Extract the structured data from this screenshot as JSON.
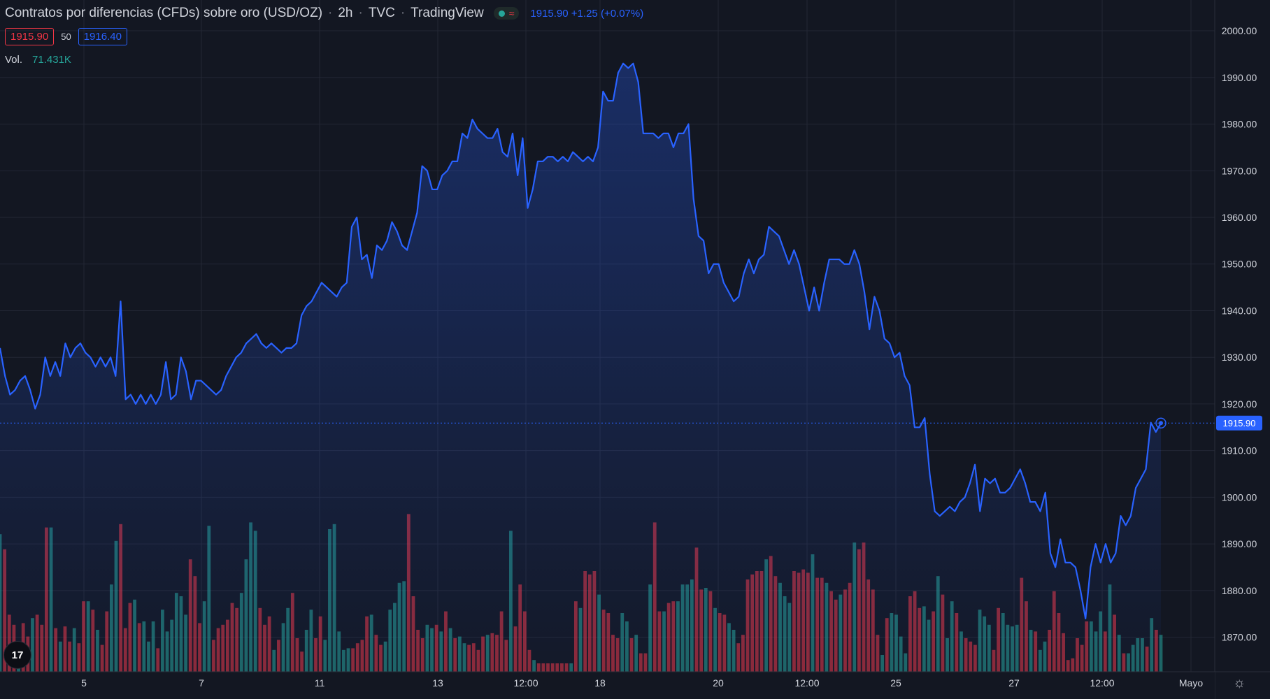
{
  "header": {
    "title": "Contratos por diferencias (CFDs) sobre oro (USD/OZ)",
    "interval": "2h",
    "exchange": "TVC",
    "source": "TradingView",
    "last_price": "1915.90",
    "change": "+1.25",
    "change_pct": "(+0.07%)"
  },
  "quote": {
    "bid": "1915.90",
    "spread": "50",
    "ask": "1916.40"
  },
  "volume": {
    "label": "Vol.",
    "value": "71.431K"
  },
  "price_label": "1915.90",
  "logo_text": "17",
  "colors": {
    "background": "#131722",
    "grid": "#232734",
    "line": "#2962ff",
    "up": "#26a69a",
    "down": "#f23645",
    "text": "#d1d4dc"
  },
  "chart_data": {
    "type": "area",
    "title": "Contratos por diferencias (CFDs) sobre oro (USD/OZ)",
    "ylim": [
      1862.6,
      2006.6
    ],
    "y_ticks": [
      "2000.00",
      "1990.00",
      "1980.00",
      "1970.00",
      "1960.00",
      "1950.00",
      "1940.00",
      "1930.00",
      "1920.00",
      "1910.00",
      "1900.00",
      "1890.00",
      "1880.00",
      "1870.00"
    ],
    "x_ticks": [
      "5",
      "7",
      "11",
      "13",
      "12:00",
      "18",
      "20",
      "12:00",
      "25",
      "27",
      "12:00",
      "Mayo"
    ],
    "current_price": 1915.9,
    "grid": true,
    "price_series": [
      1932,
      1926,
      1922,
      1923,
      1925,
      1926,
      1923,
      1919,
      1922,
      1930,
      1926,
      1929,
      1926,
      1933,
      1930,
      1932,
      1933,
      1931,
      1930,
      1928,
      1930,
      1928,
      1930,
      1926,
      1942,
      1921,
      1922,
      1920,
      1922,
      1920,
      1922,
      1920,
      1922,
      1929,
      1921,
      1922,
      1930,
      1927,
      1921,
      1925,
      1925,
      1924,
      1923,
      1922,
      1923,
      1926,
      1928,
      1930,
      1931,
      1933,
      1934,
      1935,
      1933,
      1932,
      1933,
      1932,
      1931,
      1932,
      1932,
      1933,
      1939,
      1941,
      1942,
      1944,
      1946,
      1945,
      1944,
      1943,
      1945,
      1946,
      1958,
      1960,
      1951,
      1952,
      1947,
      1954,
      1953,
      1955,
      1959,
      1957,
      1954,
      1953,
      1957,
      1961,
      1971,
      1970,
      1966,
      1966,
      1969,
      1970,
      1972,
      1972,
      1978,
      1977,
      1981,
      1979,
      1978,
      1977,
      1977,
      1979,
      1974,
      1973,
      1978,
      1969,
      1977,
      1962,
      1966,
      1972,
      1972,
      1973,
      1973,
      1972,
      1973,
      1972,
      1974,
      1973,
      1972,
      1973,
      1972,
      1975,
      1987,
      1985,
      1985,
      1991,
      1993,
      1992,
      1993,
      1989,
      1978,
      1978,
      1978,
      1977,
      1978,
      1978,
      1975,
      1978,
      1978,
      1980,
      1964,
      1956,
      1955,
      1948,
      1950,
      1950,
      1946,
      1944,
      1942,
      1943,
      1948,
      1951,
      1948,
      1951,
      1952,
      1958,
      1957,
      1956,
      1953,
      1950,
      1953,
      1950,
      1945,
      1940,
      1945,
      1940,
      1946,
      1951,
      1951,
      1951,
      1950,
      1950,
      1953,
      1950,
      1944,
      1936,
      1943,
      1940,
      1934,
      1933,
      1930,
      1931,
      1926,
      1924,
      1915,
      1915,
      1917,
      1905,
      1897,
      1896,
      1897,
      1898,
      1897,
      1899,
      1900,
      1903,
      1907,
      1897,
      1904,
      1903,
      1904,
      1901,
      1901,
      1902,
      1904,
      1906,
      1903,
      1899,
      1899,
      1897,
      1901,
      1888,
      1885,
      1891,
      1886,
      1886,
      1885,
      1880,
      1874,
      1885,
      1890,
      1886,
      1890,
      1886,
      1888,
      1896,
      1894,
      1896,
      1902,
      1904,
      1906,
      1916,
      1914,
      1915.9
    ],
    "volume_series": [
      {
        "v": 82,
        "up": true
      },
      {
        "v": 73,
        "up": false
      },
      {
        "v": 34,
        "up": false
      },
      {
        "v": 28,
        "up": false
      },
      {
        "v": 16,
        "up": true
      },
      {
        "v": 29,
        "up": false
      },
      {
        "v": 21,
        "up": false
      },
      {
        "v": 32,
        "up": true
      },
      {
        "v": 34,
        "up": false
      },
      {
        "v": 28,
        "up": false
      },
      {
        "v": 86,
        "up": false
      },
      {
        "v": 86,
        "up": true
      },
      {
        "v": 26,
        "up": false
      },
      {
        "v": 18,
        "up": true
      },
      {
        "v": 27,
        "up": false
      },
      {
        "v": 18,
        "up": false
      },
      {
        "v": 26,
        "up": true
      },
      {
        "v": 17,
        "up": false
      },
      {
        "v": 42,
        "up": false
      },
      {
        "v": 42,
        "up": true
      },
      {
        "v": 37,
        "up": false
      },
      {
        "v": 25,
        "up": true
      },
      {
        "v": 16,
        "up": false
      },
      {
        "v": 36,
        "up": false
      },
      {
        "v": 52,
        "up": true
      },
      {
        "v": 78,
        "up": true
      },
      {
        "v": 88,
        "up": false
      },
      {
        "v": 26,
        "up": false
      },
      {
        "v": 41,
        "up": false
      },
      {
        "v": 43,
        "up": true
      },
      {
        "v": 29,
        "up": false
      },
      {
        "v": 30,
        "up": true
      },
      {
        "v": 18,
        "up": true
      },
      {
        "v": 30,
        "up": true
      },
      {
        "v": 14,
        "up": false
      },
      {
        "v": 37,
        "up": true
      },
      {
        "v": 24,
        "up": true
      },
      {
        "v": 31,
        "up": true
      },
      {
        "v": 47,
        "up": true
      },
      {
        "v": 45,
        "up": true
      },
      {
        "v": 34,
        "up": true
      },
      {
        "v": 67,
        "up": false
      },
      {
        "v": 57,
        "up": false
      },
      {
        "v": 29,
        "up": false
      },
      {
        "v": 42,
        "up": true
      },
      {
        "v": 87,
        "up": true
      },
      {
        "v": 19,
        "up": false
      },
      {
        "v": 26,
        "up": false
      },
      {
        "v": 28,
        "up": false
      },
      {
        "v": 31,
        "up": false
      },
      {
        "v": 41,
        "up": false
      },
      {
        "v": 38,
        "up": false
      },
      {
        "v": 47,
        "up": true
      },
      {
        "v": 67,
        "up": true
      },
      {
        "v": 89,
        "up": true
      },
      {
        "v": 84,
        "up": true
      },
      {
        "v": 38,
        "up": false
      },
      {
        "v": 28,
        "up": false
      },
      {
        "v": 33,
        "up": false
      },
      {
        "v": 13,
        "up": true
      },
      {
        "v": 19,
        "up": false
      },
      {
        "v": 29,
        "up": true
      },
      {
        "v": 38,
        "up": true
      },
      {
        "v": 47,
        "up": false
      },
      {
        "v": 20,
        "up": false
      },
      {
        "v": 12,
        "up": false
      },
      {
        "v": 25,
        "up": true
      },
      {
        "v": 37,
        "up": true
      },
      {
        "v": 20,
        "up": false
      },
      {
        "v": 33,
        "up": false
      },
      {
        "v": 19,
        "up": true
      },
      {
        "v": 85,
        "up": true
      },
      {
        "v": 88,
        "up": true
      },
      {
        "v": 24,
        "up": true
      },
      {
        "v": 13,
        "up": true
      },
      {
        "v": 14,
        "up": true
      },
      {
        "v": 14,
        "up": false
      },
      {
        "v": 17,
        "up": false
      },
      {
        "v": 19,
        "up": false
      },
      {
        "v": 33,
        "up": false
      },
      {
        "v": 34,
        "up": true
      },
      {
        "v": 22,
        "up": false
      },
      {
        "v": 16,
        "up": false
      },
      {
        "v": 18,
        "up": true
      },
      {
        "v": 37,
        "up": true
      },
      {
        "v": 41,
        "up": true
      },
      {
        "v": 53,
        "up": true
      },
      {
        "v": 54,
        "up": true
      },
      {
        "v": 94,
        "up": false
      },
      {
        "v": 45,
        "up": false
      },
      {
        "v": 25,
        "up": false
      },
      {
        "v": 20,
        "up": false
      },
      {
        "v": 28,
        "up": true
      },
      {
        "v": 26,
        "up": true
      },
      {
        "v": 28,
        "up": false
      },
      {
        "v": 24,
        "up": true
      },
      {
        "v": 36,
        "up": false
      },
      {
        "v": 26,
        "up": true
      },
      {
        "v": 20,
        "up": false
      },
      {
        "v": 21,
        "up": true
      },
      {
        "v": 17,
        "up": true
      },
      {
        "v": 16,
        "up": false
      },
      {
        "v": 17,
        "up": false
      },
      {
        "v": 13,
        "up": false
      },
      {
        "v": 21,
        "up": false
      },
      {
        "v": 22,
        "up": true
      },
      {
        "v": 23,
        "up": false
      },
      {
        "v": 22,
        "up": false
      },
      {
        "v": 36,
        "up": false
      },
      {
        "v": 19,
        "up": false
      },
      {
        "v": 84,
        "up": true
      },
      {
        "v": 27,
        "up": false
      },
      {
        "v": 52,
        "up": false
      },
      {
        "v": 36,
        "up": false
      },
      {
        "v": 13,
        "up": false
      },
      {
        "v": 7,
        "up": true
      },
      {
        "v": 5,
        "up": false
      },
      {
        "v": 5,
        "up": false
      },
      {
        "v": 5,
        "up": false
      },
      {
        "v": 5,
        "up": false
      },
      {
        "v": 5,
        "up": false
      },
      {
        "v": 5,
        "up": false
      },
      {
        "v": 5,
        "up": false
      },
      {
        "v": 5,
        "up": true
      },
      {
        "v": 42,
        "up": false
      },
      {
        "v": 38,
        "up": true
      },
      {
        "v": 60,
        "up": false
      },
      {
        "v": 58,
        "up": false
      },
      {
        "v": 60,
        "up": false
      },
      {
        "v": 46,
        "up": true
      },
      {
        "v": 37,
        "up": false
      },
      {
        "v": 35,
        "up": false
      },
      {
        "v": 22,
        "up": false
      },
      {
        "v": 20,
        "up": false
      },
      {
        "v": 35,
        "up": true
      },
      {
        "v": 30,
        "up": true
      },
      {
        "v": 20,
        "up": false
      },
      {
        "v": 22,
        "up": true
      },
      {
        "v": 11,
        "up": false
      },
      {
        "v": 11,
        "up": false
      },
      {
        "v": 52,
        "up": true
      },
      {
        "v": 89,
        "up": false
      },
      {
        "v": 36,
        "up": false
      },
      {
        "v": 36,
        "up": true
      },
      {
        "v": 41,
        "up": false
      },
      {
        "v": 42,
        "up": false
      },
      {
        "v": 42,
        "up": true
      },
      {
        "v": 52,
        "up": true
      },
      {
        "v": 52,
        "up": true
      },
      {
        "v": 55,
        "up": true
      },
      {
        "v": 74,
        "up": false
      },
      {
        "v": 49,
        "up": false
      },
      {
        "v": 50,
        "up": true
      },
      {
        "v": 48,
        "up": false
      },
      {
        "v": 38,
        "up": true
      },
      {
        "v": 35,
        "up": false
      },
      {
        "v": 34,
        "up": false
      },
      {
        "v": 29,
        "up": true
      },
      {
        "v": 25,
        "up": true
      },
      {
        "v": 17,
        "up": false
      },
      {
        "v": 22,
        "up": false
      },
      {
        "v": 55,
        "up": false
      },
      {
        "v": 58,
        "up": false
      },
      {
        "v": 60,
        "up": false
      },
      {
        "v": 60,
        "up": false
      },
      {
        "v": 67,
        "up": true
      },
      {
        "v": 69,
        "up": false
      },
      {
        "v": 57,
        "up": false
      },
      {
        "v": 53,
        "up": true
      },
      {
        "v": 45,
        "up": true
      },
      {
        "v": 41,
        "up": true
      },
      {
        "v": 60,
        "up": false
      },
      {
        "v": 59,
        "up": false
      },
      {
        "v": 61,
        "up": false
      },
      {
        "v": 59,
        "up": false
      },
      {
        "v": 70,
        "up": true
      },
      {
        "v": 56,
        "up": false
      },
      {
        "v": 56,
        "up": false
      },
      {
        "v": 53,
        "up": true
      },
      {
        "v": 48,
        "up": false
      },
      {
        "v": 43,
        "up": false
      },
      {
        "v": 46,
        "up": true
      },
      {
        "v": 49,
        "up": false
      },
      {
        "v": 53,
        "up": false
      },
      {
        "v": 77,
        "up": true
      },
      {
        "v": 73,
        "up": false
      },
      {
        "v": 77,
        "up": false
      },
      {
        "v": 55,
        "up": false
      },
      {
        "v": 49,
        "up": false
      },
      {
        "v": 22,
        "up": false
      },
      {
        "v": 10,
        "up": true
      },
      {
        "v": 32,
        "up": false
      },
      {
        "v": 35,
        "up": true
      },
      {
        "v": 34,
        "up": true
      },
      {
        "v": 21,
        "up": true
      },
      {
        "v": 11,
        "up": true
      },
      {
        "v": 45,
        "up": false
      },
      {
        "v": 48,
        "up": false
      },
      {
        "v": 38,
        "up": false
      },
      {
        "v": 39,
        "up": true
      },
      {
        "v": 31,
        "up": true
      },
      {
        "v": 36,
        "up": false
      },
      {
        "v": 57,
        "up": true
      },
      {
        "v": 46,
        "up": false
      },
      {
        "v": 20,
        "up": true
      },
      {
        "v": 42,
        "up": true
      },
      {
        "v": 35,
        "up": false
      },
      {
        "v": 24,
        "up": true
      },
      {
        "v": 20,
        "up": false
      },
      {
        "v": 18,
        "up": false
      },
      {
        "v": 16,
        "up": false
      },
      {
        "v": 37,
        "up": true
      },
      {
        "v": 33,
        "up": true
      },
      {
        "v": 28,
        "up": true
      },
      {
        "v": 13,
        "up": false
      },
      {
        "v": 38,
        "up": false
      },
      {
        "v": 35,
        "up": true
      },
      {
        "v": 28,
        "up": true
      },
      {
        "v": 27,
        "up": true
      },
      {
        "v": 28,
        "up": true
      },
      {
        "v": 56,
        "up": false
      },
      {
        "v": 42,
        "up": false
      },
      {
        "v": 25,
        "up": true
      },
      {
        "v": 24,
        "up": false
      },
      {
        "v": 13,
        "up": true
      },
      {
        "v": 18,
        "up": true
      },
      {
        "v": 25,
        "up": false
      },
      {
        "v": 48,
        "up": false
      },
      {
        "v": 35,
        "up": false
      },
      {
        "v": 23,
        "up": false
      },
      {
        "v": 7,
        "up": false
      },
      {
        "v": 8,
        "up": false
      },
      {
        "v": 20,
        "up": false
      },
      {
        "v": 16,
        "up": false
      },
      {
        "v": 30,
        "up": false
      },
      {
        "v": 30,
        "up": true
      },
      {
        "v": 24,
        "up": true
      },
      {
        "v": 36,
        "up": true
      },
      {
        "v": 24,
        "up": false
      },
      {
        "v": 52,
        "up": true
      },
      {
        "v": 34,
        "up": false
      },
      {
        "v": 22,
        "up": true
      },
      {
        "v": 11,
        "up": false
      },
      {
        "v": 11,
        "up": true
      },
      {
        "v": 16,
        "up": true
      },
      {
        "v": 20,
        "up": true
      },
      {
        "v": 20,
        "up": true
      },
      {
        "v": 15,
        "up": false
      },
      {
        "v": 32,
        "up": true
      },
      {
        "v": 25,
        "up": false
      },
      {
        "v": 22,
        "up": true
      }
    ]
  }
}
